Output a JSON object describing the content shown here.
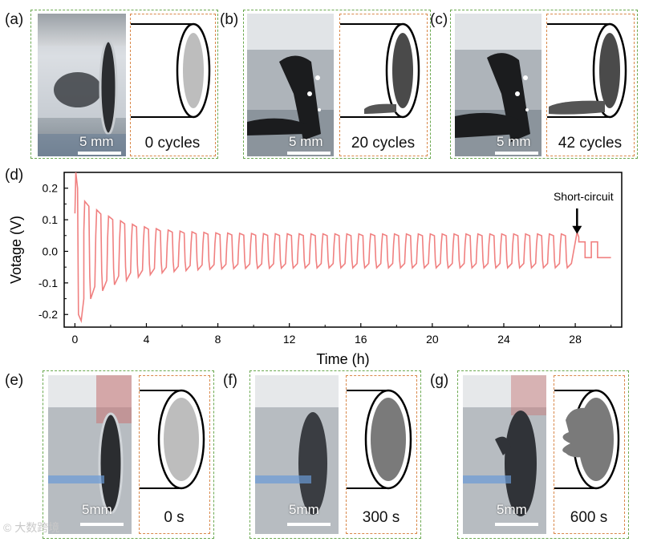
{
  "panels_top": [
    {
      "letter": "(a)",
      "scale": "5 mm",
      "caption": "0 cycles",
      "disk_color": "#bdbdbd",
      "stage": 0
    },
    {
      "letter": "(b)",
      "scale": "5 mm",
      "caption": "20 cycles",
      "disk_color": "#4a4a4a",
      "stage": 1
    },
    {
      "letter": "(c)",
      "scale": "5 mm",
      "caption": "42 cycles",
      "disk_color": "#4a4a4a",
      "stage": 2
    }
  ],
  "panels_bottom": [
    {
      "letter": "(e)",
      "scale": "5mm",
      "caption": "0 s",
      "disk_color": "#bdbdbd",
      "stage": 0
    },
    {
      "letter": "(f)",
      "scale": "5mm",
      "caption": "300 s",
      "disk_color": "#7a7a7a",
      "stage": 1
    },
    {
      "letter": "(g)",
      "scale": "5mm",
      "caption": "600 s",
      "disk_color": "#7a7a7a",
      "stage": 2
    }
  ],
  "chart_letter": "(d)",
  "watermark": "© 大数跨境",
  "chart_data": {
    "type": "line",
    "xlabel": "Time (h)",
    "ylabel": "Votage (V)",
    "xlim": [
      -0.6,
      30.6
    ],
    "ylim": [
      -0.24,
      0.25
    ],
    "xticks": [
      0,
      4,
      8,
      12,
      16,
      20,
      24,
      28
    ],
    "yticks": [
      -0.2,
      -0.1,
      0.0,
      0.1,
      0.2
    ],
    "ytick_labels": [
      "-0.2",
      "-0.1",
      "0.0",
      "0.1",
      "0.2"
    ],
    "line_color": "#f08080",
    "cycle_period_h": 0.6667,
    "annotation": {
      "text": "Short-circuit",
      "x": 28.1,
      "y": 0.05
    },
    "short_circuit_h": 28.1,
    "end_h": 30.0
  }
}
